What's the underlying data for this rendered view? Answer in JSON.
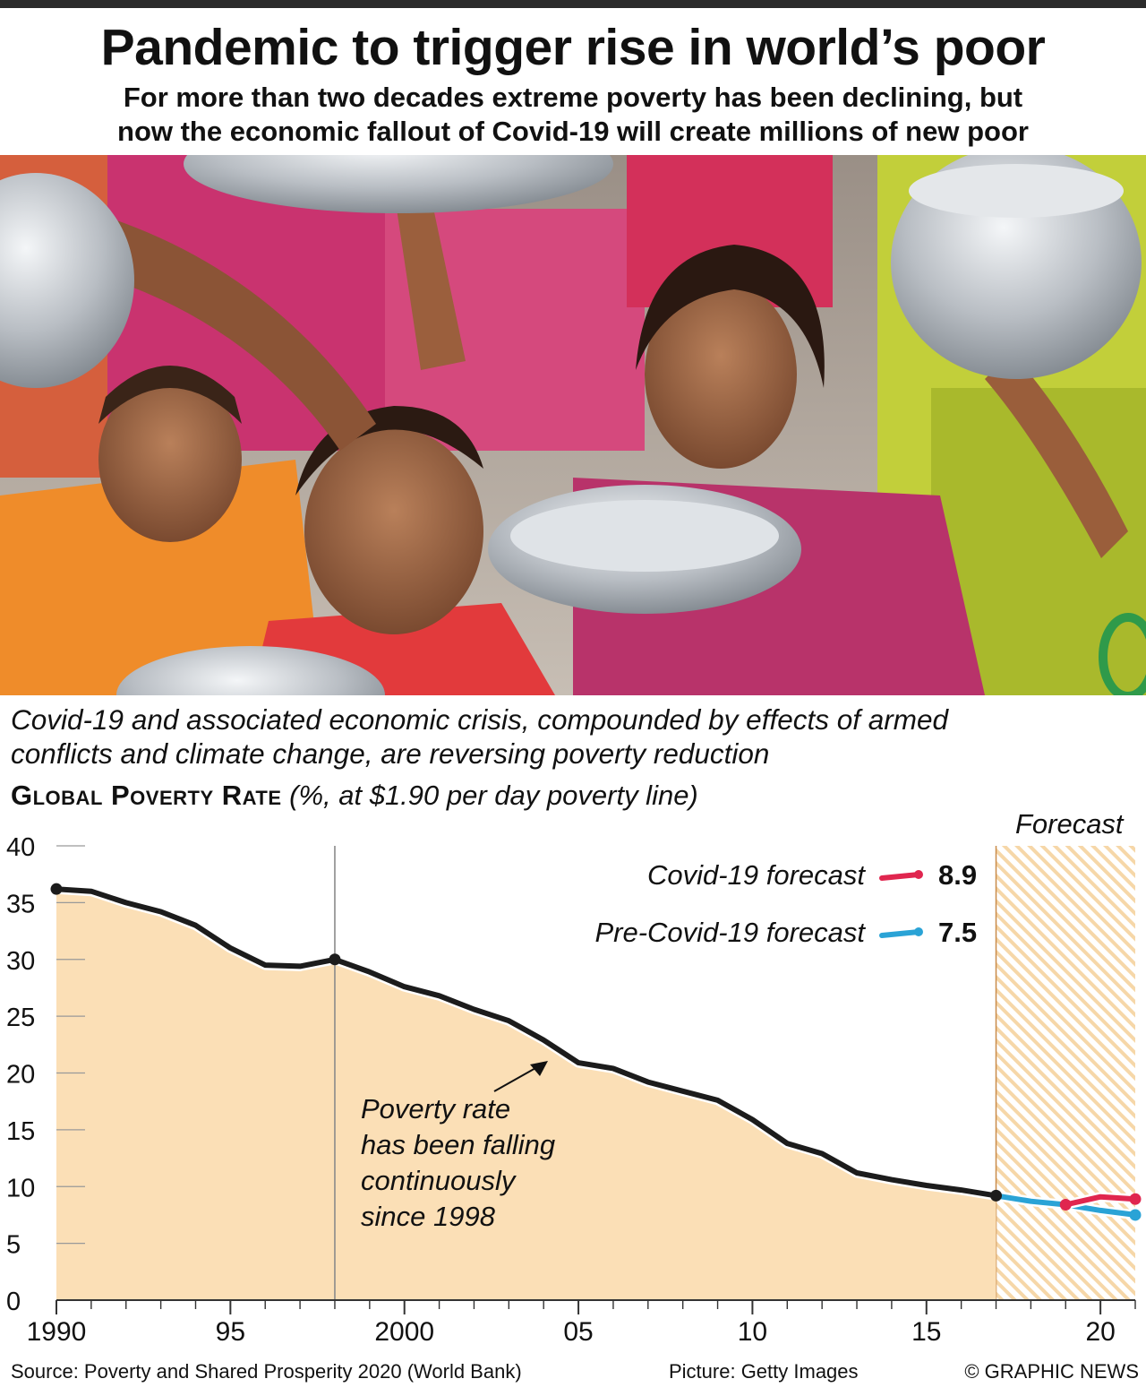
{
  "headline": "Pandemic to trigger rise in world’s poor",
  "standfirst": {
    "line1": "For more than two decades extreme poverty has been declining, but",
    "line2": "now the economic fallout of Covid-19 will create millions of new poor"
  },
  "intro": {
    "line1": "Covid-19 and associated economic crisis, compounded by effects of armed",
    "line2": "conflicts and climate change, are reversing poverty reduction"
  },
  "chart_title": {
    "caps": "Global Poverty Rate",
    "unit": "(%, at $1.90 per day poverty line)"
  },
  "footer": {
    "source": "Source: Poverty and Shared Prosperity 2020 (World Bank)",
    "credit": "Picture: Getty Images",
    "copyright": "© GRAPHIC NEWS"
  },
  "colors": {
    "area_fill": "#fbdfb6",
    "main_line": "#1c1c1c",
    "covid_line": "#e0264f",
    "precovid_line": "#2aa3d6",
    "forecast_hatch": "#f4d3a3"
  },
  "chart_data": {
    "type": "line",
    "title": "Global Poverty Rate",
    "ylabel": "%, at $1.90 per day poverty line",
    "ylim": [
      0,
      40
    ],
    "yticks": [
      0,
      5,
      10,
      15,
      20,
      25,
      30,
      35,
      40
    ],
    "xlim": [
      1990,
      2021
    ],
    "xticks": [
      {
        "year": 1990,
        "label": "1990"
      },
      {
        "year": 1995,
        "label": "95"
      },
      {
        "year": 2000,
        "label": "2000"
      },
      {
        "year": 2005,
        "label": "05"
      },
      {
        "year": 2010,
        "label": "10"
      },
      {
        "year": 2015,
        "label": "15"
      },
      {
        "year": 2020,
        "label": "20"
      }
    ],
    "forecast": {
      "label": "Forecast",
      "from": 2017,
      "to": 2021
    },
    "marker_years": [
      1990,
      1998,
      2017
    ],
    "annotation": {
      "lines": [
        "Poverty rate",
        "has been falling",
        "continuously",
        "since 1998"
      ]
    },
    "series": [
      {
        "x": [
          1990,
          1991,
          1992,
          1993,
          1994,
          1995,
          1996,
          1997,
          1998,
          1999,
          2000,
          2001,
          2002,
          2003,
          2004,
          2005,
          2006,
          2007,
          2008,
          2009,
          2010,
          2011,
          2012,
          2013,
          2014,
          2015,
          2016,
          2017
        ],
        "y": [
          36.2,
          36.0,
          35.0,
          34.2,
          33.0,
          31.0,
          29.5,
          29.4,
          30.0,
          28.9,
          27.6,
          26.8,
          25.6,
          24.6,
          22.9,
          20.9,
          20.4,
          19.2,
          18.4,
          17.6,
          15.9,
          13.8,
          12.9,
          11.2,
          10.6,
          10.1,
          9.7,
          9.2
        ]
      },
      {
        "name": "Pre-Covid-19 forecast",
        "label": "7.5",
        "x": [
          2017,
          2018,
          2019,
          2020,
          2021
        ],
        "y": [
          9.2,
          8.7,
          8.4,
          7.9,
          7.5
        ]
      },
      {
        "name": "Covid-19 forecast",
        "label": "8.9",
        "x": [
          2019,
          2020,
          2021
        ],
        "y": [
          8.4,
          9.1,
          8.9
        ]
      }
    ]
  }
}
